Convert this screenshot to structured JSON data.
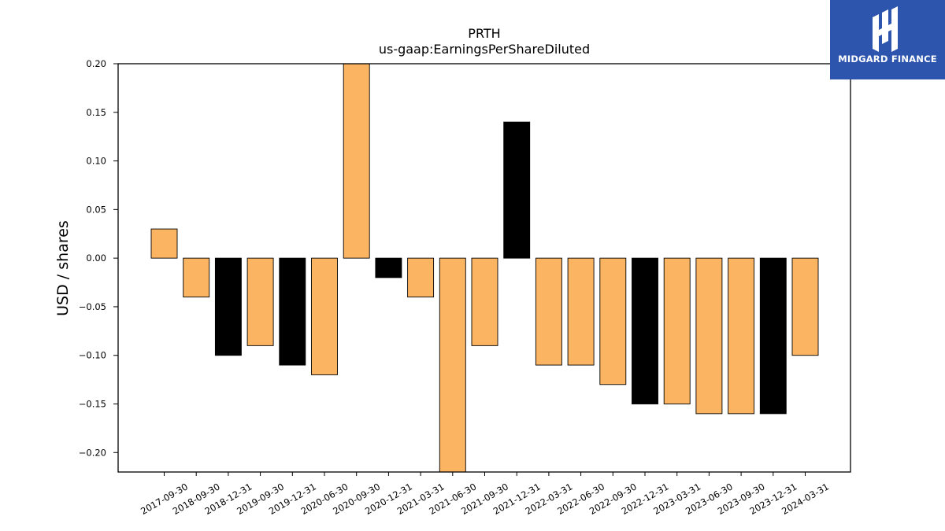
{
  "chart_data": {
    "type": "bar",
    "title": "PRTH",
    "subtitle": "us-gaap:EarningsPerShareDiluted",
    "xlabel": "",
    "ylabel": "USD / shares",
    "ylim": [
      -0.22,
      0.2
    ],
    "yticks": [
      "0.20",
      "0.15",
      "0.10",
      "0.05",
      "0.00",
      "−0.05",
      "−0.10",
      "−0.15",
      "−0.20"
    ],
    "ytick_values": [
      0.2,
      0.15,
      0.1,
      0.05,
      0.0,
      -0.05,
      -0.1,
      -0.15,
      -0.2
    ],
    "categories": [
      "2017-09-30",
      "2018-09-30",
      "2018-12-31",
      "2019-09-30",
      "2019-12-31",
      "2020-06-30",
      "2020-09-30",
      "2020-12-31",
      "2021-03-31",
      "2021-06-30",
      "2021-09-30",
      "2021-12-31",
      "2022-03-31",
      "2022-06-30",
      "2022-09-30",
      "2022-12-31",
      "2023-03-31",
      "2023-06-30",
      "2023-09-30",
      "2023-12-31",
      "2024-03-31"
    ],
    "values": [
      0.03,
      -0.04,
      -0.1,
      -0.09,
      -0.11,
      -0.12,
      0.2,
      -0.02,
      -0.04,
      -0.22,
      -0.09,
      0.14,
      -0.11,
      -0.11,
      -0.13,
      -0.15,
      -0.15,
      -0.16,
      -0.16,
      -0.16,
      -0.1
    ],
    "bar_colors": [
      "#fbb462",
      "#fbb462",
      "#000000",
      "#fbb462",
      "#000000",
      "#fbb462",
      "#fbb462",
      "#000000",
      "#fbb462",
      "#fbb462",
      "#fbb462",
      "#000000",
      "#fbb462",
      "#fbb462",
      "#fbb462",
      "#000000",
      "#fbb462",
      "#fbb462",
      "#fbb462",
      "#000000",
      "#fbb462"
    ],
    "grid": false,
    "legend": "none"
  },
  "logo": {
    "text": "MIDGARD FINANCE",
    "background": "#2e55ad"
  }
}
